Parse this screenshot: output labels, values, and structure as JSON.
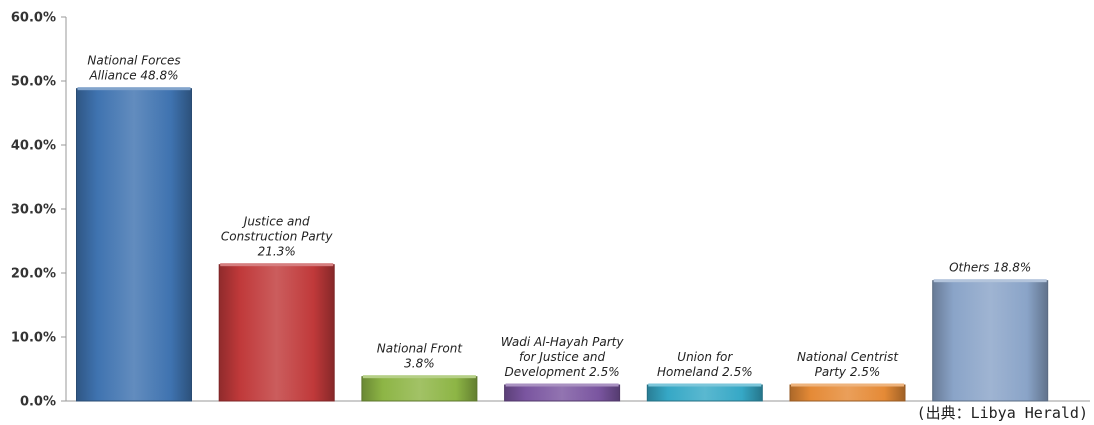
{
  "chart_data": {
    "type": "bar",
    "categories": [
      "National Forces Alliance",
      "Justice and Construction Party",
      "National Front",
      "Wadi Al-Hayah Party for Justice and Development",
      "Union for Homeland",
      "National Centrist Party",
      "Others"
    ],
    "values": [
      48.8,
      21.3,
      3.8,
      2.5,
      2.5,
      2.5,
      18.8
    ],
    "data_labels": [
      [
        "National Forces",
        "Alliance 48.8%"
      ],
      [
        "Justice and",
        "Construction Party",
        "21.3%"
      ],
      [
        "National Front",
        "3.8%"
      ],
      [
        "Wadi Al-Hayah Party",
        "for Justice and",
        "Development  2.5%"
      ],
      [
        "Union for",
        "Homeland 2.5%"
      ],
      [
        "National Centrist",
        "Party 2.5%"
      ],
      [
        "Others 18.8%"
      ]
    ],
    "ylim": [
      0,
      60
    ],
    "yticks": [
      "0.0%",
      "10.0%",
      "20.0%",
      "30.0%",
      "40.0%",
      "50.0%",
      "60.0%"
    ],
    "colors": [
      "#3f73b0",
      "#c0393a",
      "#8db545",
      "#7a55a0",
      "#36a8c6",
      "#e58a36",
      "#8aa4c8"
    ],
    "grid": false,
    "legend": "none"
  },
  "source_note": "(出典：Libya Herald)"
}
